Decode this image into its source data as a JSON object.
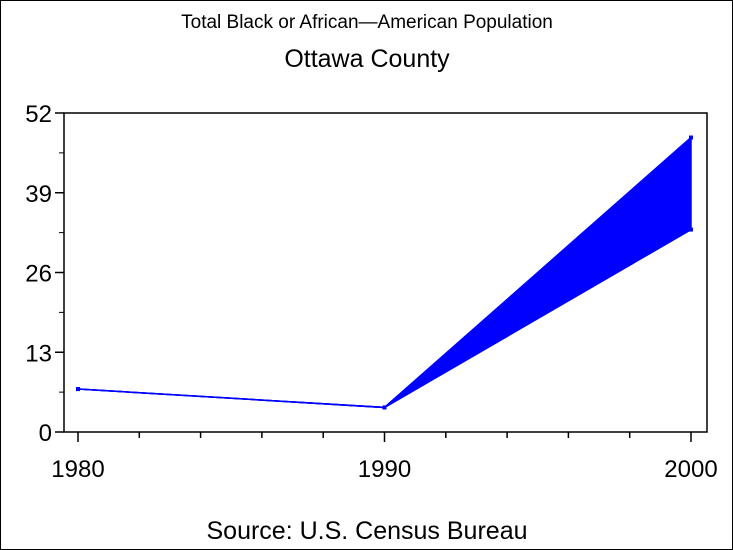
{
  "chart_data": {
    "type": "line",
    "title": "Total Black or African—American Population",
    "subtitle": "Ottawa County",
    "footnote": "Source: U.S. Census Bureau",
    "xlabel": "",
    "ylabel": "",
    "x_ticks": [
      "1980",
      "1990",
      "2000"
    ],
    "y_ticks": [
      "0",
      "13",
      "26",
      "39",
      "52"
    ],
    "xlim": [
      1980,
      2000
    ],
    "ylim": [
      0,
      52
    ],
    "series": [
      {
        "name": "Population (upper)",
        "x": [
          1980,
          1990,
          2000
        ],
        "values": [
          7,
          4,
          48
        ]
      },
      {
        "name": "Population (lower)",
        "x": [
          1980,
          1990,
          2000
        ],
        "values": [
          7,
          4,
          33
        ]
      }
    ],
    "fill_between_series": true,
    "color": "#0000ff",
    "grid": false
  }
}
